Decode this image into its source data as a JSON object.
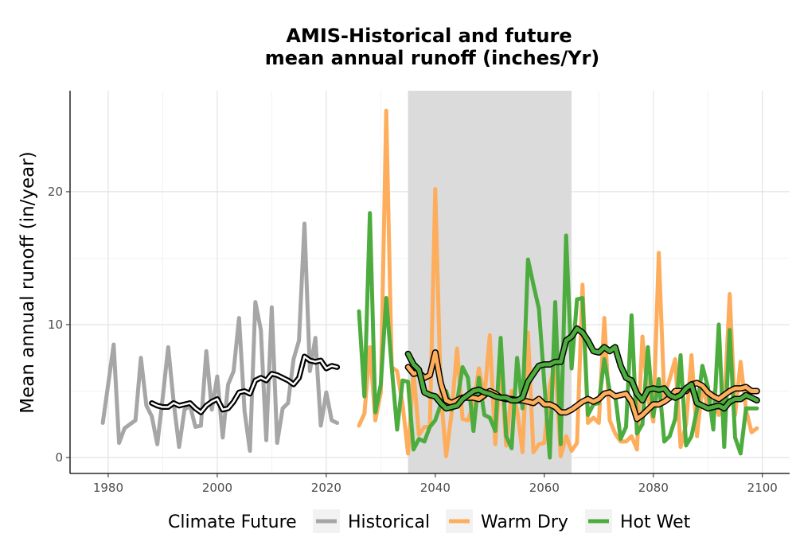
{
  "chart_data": {
    "type": "line",
    "title_line1": "AMIS-Historical and future",
    "title_line2": "mean annual runoff (inches/Yr)",
    "xlabel": "",
    "ylabel": "Mean annual runoff (in/year)",
    "xlim": [
      1973,
      2105
    ],
    "ylim": [
      -1.2,
      27.6
    ],
    "x_ticks": [
      1980,
      2000,
      2020,
      2040,
      2060,
      2080,
      2100
    ],
    "y_ticks": [
      0,
      10,
      20
    ],
    "grid": true,
    "shaded_period": [
      2035,
      2065
    ],
    "legend": {
      "title": "Climate Future",
      "placement": "bottom",
      "entries": [
        "Historical",
        "Warm Dry",
        "Hot Wet"
      ]
    },
    "series": [
      {
        "name": "Historical",
        "color": "#a6a6a6",
        "x": [
          1979,
          1980,
          1981,
          1982,
          1983,
          1984,
          1985,
          1986,
          1987,
          1988,
          1989,
          1990,
          1991,
          1992,
          1993,
          1994,
          1995,
          1996,
          1997,
          1998,
          1999,
          2000,
          2001,
          2002,
          2003,
          2004,
          2005,
          2006,
          2007,
          2008,
          2009,
          2010,
          2011,
          2012,
          2013,
          2014,
          2015,
          2016,
          2017,
          2018,
          2019,
          2020,
          2021,
          2022
        ],
        "y": [
          2.6,
          5.5,
          8.5,
          1.1,
          2.2,
          2.5,
          2.8,
          7.5,
          3.9,
          3.1,
          1.0,
          4.5,
          8.3,
          4.2,
          0.8,
          3.6,
          3.9,
          2.3,
          2.4,
          8.0,
          3.6,
          6.1,
          1.5,
          5.5,
          6.5,
          10.5,
          3.5,
          0.5,
          11.7,
          9.6,
          1.3,
          11.3,
          1.1,
          3.7,
          4.1,
          7.4,
          8.8,
          17.6,
          6.5,
          9.0,
          2.4,
          4.9,
          2.8,
          2.6
        ]
      },
      {
        "name": "Historical smooth",
        "color": "#000000",
        "x": [
          1988,
          1989,
          1990,
          1991,
          1992,
          1993,
          1994,
          1995,
          1996,
          1997,
          1998,
          1999,
          2000,
          2001,
          2002,
          2003,
          2004,
          2005,
          2006,
          2007,
          2008,
          2009,
          2010,
          2011,
          2012,
          2013,
          2014,
          2015,
          2016,
          2017,
          2018,
          2019,
          2020,
          2021,
          2022
        ],
        "y": [
          4.1,
          3.9,
          3.8,
          3.8,
          4.1,
          3.9,
          4.0,
          4.1,
          3.7,
          3.4,
          3.9,
          4.2,
          4.4,
          3.6,
          3.7,
          4.2,
          4.9,
          5.0,
          4.8,
          5.8,
          6.0,
          5.8,
          6.3,
          6.2,
          6.0,
          5.8,
          5.5,
          6.0,
          7.6,
          7.3,
          7.2,
          7.3,
          6.7,
          6.9,
          6.8
        ]
      },
      {
        "name": "Warm Dry",
        "color": "#fdad5c",
        "x": [
          2026,
          2027,
          2028,
          2029,
          2030,
          2031,
          2032,
          2033,
          2034,
          2035,
          2036,
          2037,
          2038,
          2039,
          2040,
          2041,
          2042,
          2043,
          2044,
          2045,
          2046,
          2047,
          2048,
          2049,
          2050,
          2051,
          2052,
          2053,
          2054,
          2055,
          2056,
          2057,
          2058,
          2059,
          2060,
          2061,
          2062,
          2063,
          2064,
          2065,
          2066,
          2067,
          2068,
          2069,
          2070,
          2071,
          2072,
          2073,
          2074,
          2075,
          2076,
          2077,
          2078,
          2079,
          2080,
          2081,
          2082,
          2083,
          2084,
          2085,
          2086,
          2087,
          2088,
          2089,
          2090,
          2091,
          2092,
          2093,
          2094,
          2095,
          2096,
          2097,
          2098,
          2099
        ],
        "y": [
          2.4,
          3.3,
          8.3,
          2.8,
          4.9,
          26.1,
          6.8,
          6.5,
          4.0,
          0.3,
          6.5,
          1.7,
          2.3,
          2.3,
          20.2,
          4.8,
          0.1,
          3.4,
          8.2,
          2.9,
          2.8,
          4.0,
          6.7,
          4.5,
          9.2,
          1.0,
          7.0,
          0.9,
          5.0,
          3.6,
          0.4,
          9.4,
          0.4,
          1.0,
          1.1,
          5.4,
          7.1,
          0.1,
          1.6,
          0.5,
          1.1,
          13.0,
          2.6,
          3.0,
          2.6,
          10.5,
          2.8,
          1.8,
          1.2,
          1.2,
          1.6,
          0.6,
          9.1,
          4.5,
          2.7,
          15.4,
          4.6,
          5.9,
          7.4,
          0.8,
          2.5,
          7.7,
          1.6,
          5.4,
          3.8,
          4.9,
          3.2,
          3.7,
          12.3,
          3.2,
          7.2,
          3.6,
          1.9,
          2.2
        ]
      },
      {
        "name": "Hot Wet",
        "color": "#4dac3e",
        "x": [
          2026,
          2027,
          2028,
          2029,
          2030,
          2031,
          2032,
          2033,
          2034,
          2035,
          2036,
          2037,
          2038,
          2039,
          2040,
          2041,
          2042,
          2043,
          2044,
          2045,
          2046,
          2047,
          2048,
          2049,
          2050,
          2051,
          2052,
          2053,
          2054,
          2055,
          2056,
          2057,
          2058,
          2059,
          2060,
          2061,
          2062,
          2063,
          2064,
          2065,
          2066,
          2067,
          2068,
          2069,
          2070,
          2071,
          2072,
          2073,
          2074,
          2075,
          2076,
          2077,
          2078,
          2079,
          2080,
          2081,
          2082,
          2083,
          2084,
          2085,
          2086,
          2087,
          2088,
          2089,
          2090,
          2091,
          2092,
          2093,
          2094,
          2095,
          2096,
          2097,
          2098,
          2099
        ],
        "y": [
          11.0,
          4.6,
          18.4,
          3.4,
          5.5,
          12.0,
          6.8,
          2.1,
          5.8,
          5.7,
          0.6,
          1.4,
          1.2,
          2.3,
          2.8,
          4.0,
          5.0,
          3.6,
          4.2,
          6.8,
          6.0,
          2.0,
          6.0,
          3.2,
          3.0,
          2.0,
          9.0,
          1.6,
          0.7,
          7.5,
          3.7,
          14.9,
          13.0,
          11.2,
          5.6,
          0.0,
          11.7,
          1.0,
          16.7,
          6.7,
          11.9,
          12.0,
          3.2,
          4.0,
          4.1,
          7.4,
          5.0,
          4.7,
          1.4,
          2.3,
          10.7,
          1.8,
          2.5,
          8.3,
          3.1,
          5.9,
          1.2,
          1.6,
          2.9,
          7.7,
          0.9,
          1.6,
          3.6,
          6.9,
          5.3,
          2.1,
          10.0,
          0.8,
          9.6,
          1.5,
          0.3,
          3.7,
          3.7,
          3.7
        ]
      },
      {
        "name": "Warm Dry smooth",
        "color": "#fdad5c",
        "x": [
          2035,
          2036,
          2037,
          2038,
          2039,
          2040,
          2041,
          2042,
          2043,
          2044,
          2045,
          2046,
          2047,
          2048,
          2049,
          2050,
          2051,
          2052,
          2053,
          2054,
          2055,
          2056,
          2057,
          2058,
          2059,
          2060,
          2061,
          2062,
          2063,
          2064,
          2065,
          2066,
          2067,
          2068,
          2069,
          2070,
          2071,
          2072,
          2073,
          2074,
          2075,
          2076,
          2077,
          2078,
          2079,
          2080,
          2081,
          2082,
          2083,
          2084,
          2085,
          2086,
          2087,
          2088,
          2089,
          2090,
          2091,
          2092,
          2093,
          2094,
          2095,
          2096,
          2097,
          2098,
          2099
        ],
        "y": [
          6.8,
          6.3,
          6.4,
          6.0,
          6.2,
          7.9,
          5.6,
          4.3,
          4.1,
          4.3,
          4.5,
          4.5,
          4.5,
          4.4,
          4.7,
          5.0,
          4.8,
          4.5,
          4.4,
          4.4,
          4.3,
          4.3,
          4.2,
          4.1,
          4.4,
          4.0,
          4.0,
          3.8,
          3.4,
          3.4,
          3.6,
          3.9,
          4.2,
          4.4,
          4.2,
          4.4,
          4.8,
          4.9,
          4.6,
          4.7,
          4.8,
          4.2,
          2.9,
          3.2,
          3.6,
          4.0,
          4.0,
          4.2,
          4.5,
          5.0,
          5.0,
          5.0,
          5.5,
          5.6,
          5.4,
          4.9,
          4.6,
          4.4,
          4.7,
          5.0,
          5.2,
          5.2,
          5.3,
          5.0,
          5.0
        ]
      },
      {
        "name": "Hot Wet smooth",
        "color": "#4dac3e",
        "x": [
          2035,
          2036,
          2037,
          2038,
          2039,
          2040,
          2041,
          2042,
          2043,
          2044,
          2045,
          2046,
          2047,
          2048,
          2049,
          2050,
          2051,
          2052,
          2053,
          2054,
          2055,
          2056,
          2057,
          2058,
          2059,
          2060,
          2061,
          2062,
          2063,
          2064,
          2065,
          2066,
          2067,
          2068,
          2069,
          2070,
          2071,
          2072,
          2073,
          2074,
          2075,
          2076,
          2077,
          2078,
          2079,
          2080,
          2081,
          2082,
          2083,
          2084,
          2085,
          2086,
          2087,
          2088,
          2089,
          2090,
          2091,
          2092,
          2093,
          2094,
          2095,
          2096,
          2097,
          2098,
          2099
        ],
        "y": [
          7.8,
          7.0,
          6.6,
          4.9,
          4.7,
          4.6,
          4.1,
          3.7,
          3.8,
          3.9,
          4.4,
          4.7,
          5.0,
          5.1,
          4.9,
          4.8,
          4.6,
          4.5,
          4.5,
          4.3,
          4.3,
          4.5,
          5.7,
          6.3,
          6.9,
          7.0,
          7.0,
          7.2,
          7.2,
          8.8,
          9.1,
          9.7,
          9.4,
          8.8,
          8.0,
          7.9,
          8.3,
          8.0,
          8.3,
          6.9,
          6.0,
          5.8,
          4.8,
          4.3,
          5.1,
          5.2,
          5.1,
          5.2,
          4.7,
          4.5,
          4.7,
          5.2,
          5.5,
          4.1,
          3.9,
          3.7,
          3.8,
          3.9,
          3.7,
          4.2,
          4.4,
          4.4,
          4.7,
          4.5,
          4.3
        ]
      }
    ]
  }
}
